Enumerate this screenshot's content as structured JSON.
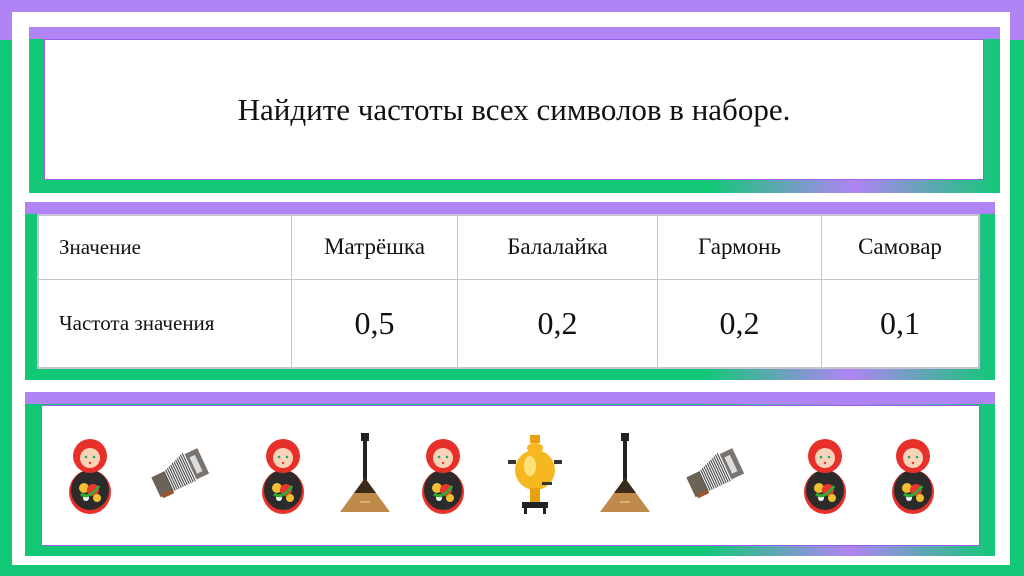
{
  "title": "Найдите частоты всех символов в наборе.",
  "table": {
    "header": [
      "Значение",
      "Матрёшка",
      "Балалайка",
      "Гармонь",
      "Самовар"
    ],
    "row": [
      "Частота значения",
      "0,5",
      "0,2",
      "0,2",
      "0,1"
    ]
  },
  "items": [
    "matryoshka",
    "accordion",
    "matryoshka",
    "balalaika",
    "matryoshka",
    "samovar",
    "balalaika",
    "accordion",
    "matryoshka",
    "matryoshka"
  ],
  "colors": {
    "purple": "#b084f4",
    "green": "#12c877",
    "border": "#9b5ce8"
  }
}
